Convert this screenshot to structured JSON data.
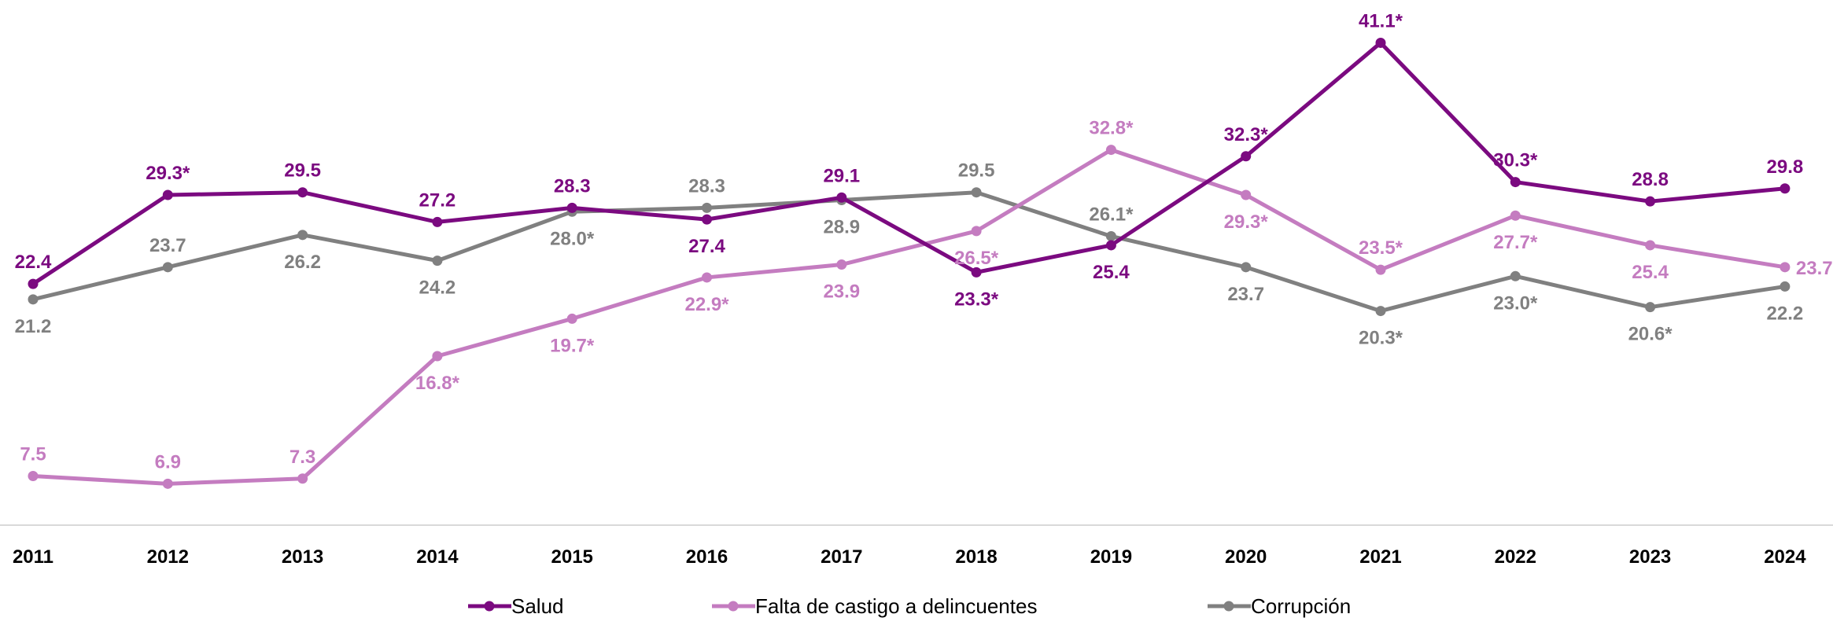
{
  "chart_data": {
    "type": "line",
    "categories": [
      "2011",
      "2012",
      "2013",
      "2014",
      "2015",
      "2016",
      "2017",
      "2018",
      "2019",
      "2020",
      "2021",
      "2022",
      "2023",
      "2024"
    ],
    "series": [
      {
        "name": "Salud",
        "color": "#7b0a80",
        "values": [
          22.4,
          29.3,
          29.5,
          27.2,
          28.3,
          27.4,
          29.1,
          23.3,
          25.4,
          32.3,
          41.1,
          30.3,
          28.8,
          29.8
        ],
        "labels": [
          "22.4",
          "29.3*",
          "29.5",
          "27.2",
          "28.3",
          "27.4",
          "29.1",
          "23.3*",
          "25.4",
          "32.3*",
          "41.1*",
          "30.3*",
          "28.8",
          "29.8"
        ]
      },
      {
        "name": "Falta de castigo a delincuentes",
        "color": "#c47cc0",
        "values": [
          7.5,
          6.9,
          7.3,
          16.8,
          19.7,
          22.9,
          23.9,
          26.5,
          32.8,
          29.3,
          23.5,
          27.7,
          25.4,
          23.7
        ],
        "labels": [
          "7.5",
          "6.9",
          "7.3",
          "16.8*",
          "19.7*",
          "22.9*",
          "23.9",
          "26.5*",
          "32.8*",
          "29.3*",
          "23.5*",
          "27.7*",
          "25.4",
          "23.7"
        ]
      },
      {
        "name": "Corrupción",
        "color": "#808080",
        "values": [
          21.2,
          23.7,
          26.2,
          24.2,
          28.0,
          28.3,
          28.9,
          29.5,
          26.1,
          23.7,
          20.3,
          23.0,
          20.6,
          22.2
        ],
        "labels": [
          "21.2",
          "23.7",
          "26.2",
          "24.2",
          "28.0*",
          "28.3",
          "28.9",
          "29.5",
          "26.1*",
          "23.7",
          "20.3*",
          "23.0*",
          "20.6*",
          "22.2"
        ]
      }
    ],
    "legend_position": "bottom",
    "grid": false
  }
}
